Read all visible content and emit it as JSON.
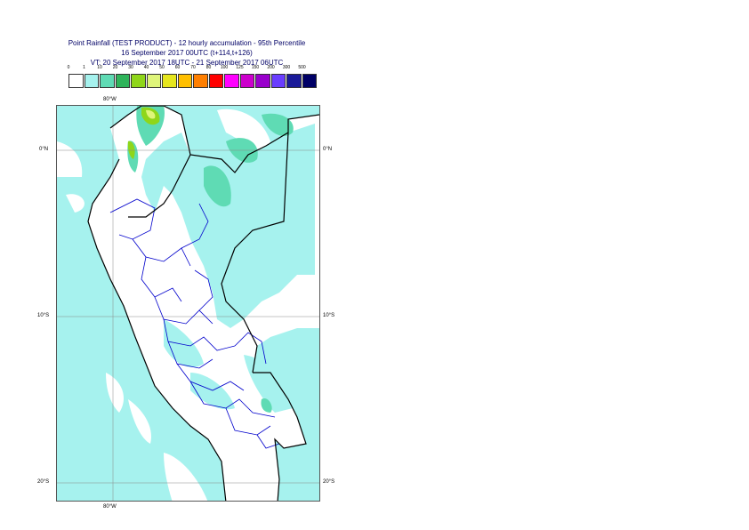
{
  "title": {
    "line1": "Point Rainfall (TEST PRODUCT) - 12 hourly accumulation - 95th Percentile",
    "line2": "16 September 2017 00UTC (t+114,t+126)",
    "line3": "VT: 20 September 2017 18UTC - 21 September 2017 06UTC"
  },
  "legend": {
    "labels": [
      "0",
      "1",
      "10",
      "20",
      "30",
      "40",
      "50",
      "60",
      "70",
      "80",
      "100",
      "125",
      "150",
      "200",
      "300",
      "500"
    ],
    "colors": [
      "#ffffff",
      "#a6f2ee",
      "#5fdbb4",
      "#2fb45a",
      "#8fd61a",
      "#dff57a",
      "#e6e61e",
      "#ffbf00",
      "#ff7f00",
      "#ff0000",
      "#ff00ff",
      "#cc00cc",
      "#9900cc",
      "#6a3dff",
      "#1a1a99",
      "#000066"
    ]
  },
  "map": {
    "lon_labels_top": [
      "80°W"
    ],
    "lon_labels_bottom": [
      "80°W"
    ],
    "lat_labels_left": [
      "0°N",
      "10°S",
      "20°S"
    ],
    "lat_labels_right": [
      "0°N",
      "10°S",
      "20°S"
    ],
    "colors": {
      "sea": "#a6f2ee",
      "rain_10": "#5fdbb4",
      "rain_20": "#8fd61a",
      "rain_30": "#dff57a",
      "coast": "#000000",
      "borders": "#0000cc",
      "grid": "#888888"
    }
  }
}
